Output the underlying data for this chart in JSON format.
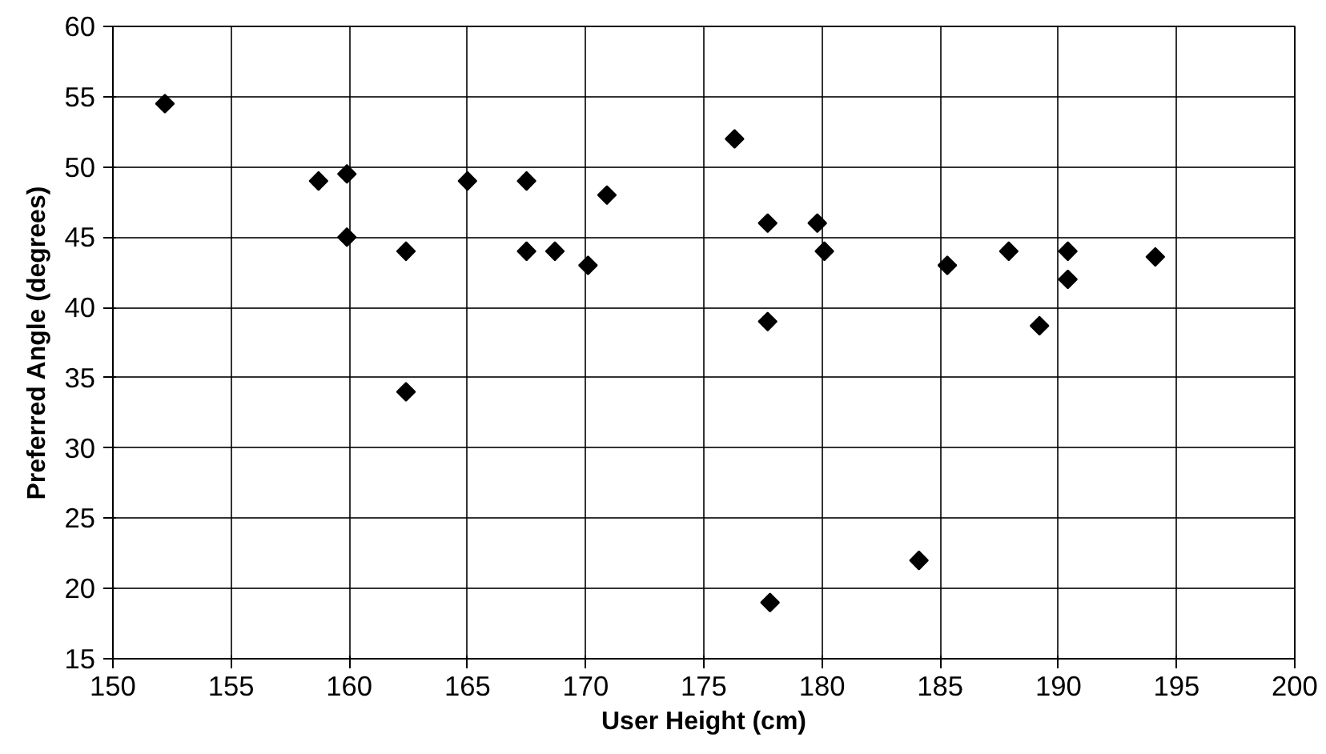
{
  "chart_data": {
    "type": "scatter",
    "xlabel": "User Height (cm)",
    "ylabel": "Preferred Angle (degrees)",
    "x": [
      152.2,
      158.7,
      159.9,
      159.9,
      162.4,
      162.4,
      165,
      167.5,
      167.5,
      168.7,
      170.1,
      170.9,
      176.3,
      177.7,
      179.8,
      180.1,
      177.7,
      177.8,
      184.1,
      185.3,
      187.9,
      190.4,
      190.4,
      189.2,
      194.1
    ],
    "series": [
      {
        "color": "#000000",
        "values": [
          54.5,
          49,
          49.5,
          45,
          44,
          34,
          49,
          49,
          44,
          44,
          43,
          48,
          52,
          46,
          46,
          44,
          39,
          19,
          22,
          43,
          44,
          44,
          42,
          38.7,
          43.6
        ]
      }
    ],
    "xlim": [
      150,
      200
    ],
    "xticks": [
      150,
      155,
      160,
      165,
      170,
      175,
      180,
      185,
      190,
      195,
      200
    ],
    "ylim": [
      15,
      60
    ],
    "yticks": [
      15,
      20,
      25,
      30,
      35,
      40,
      45,
      50,
      55,
      60
    ],
    "grid": true,
    "marker": "diamond"
  }
}
